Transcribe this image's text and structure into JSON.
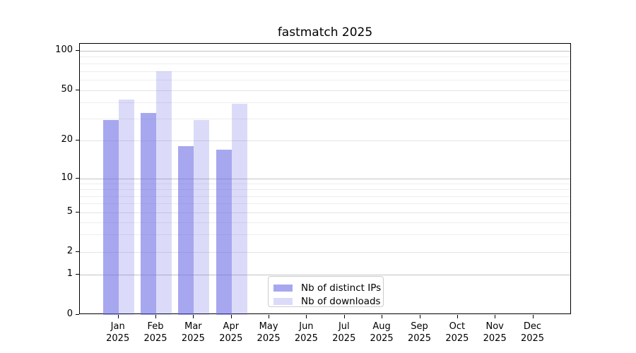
{
  "title": "fastmatch 2025",
  "chart_data": {
    "type": "bar",
    "title": "fastmatch 2025",
    "categories": [
      "Jan",
      "Feb",
      "Mar",
      "Apr",
      "May",
      "Jun",
      "Jul",
      "Aug",
      "Sep",
      "Oct",
      "Nov",
      "Dec"
    ],
    "year_label": "2025",
    "series": [
      {
        "name": "Nb of distinct IPs",
        "color": "rgba(104, 104, 228, 0.58)",
        "values": [
          29,
          33,
          18,
          17,
          0,
          0,
          0,
          0,
          0,
          0,
          0,
          0
        ]
      },
      {
        "name": "Nb of downloads",
        "color": "rgba(104, 104, 228, 0.24)",
        "values": [
          42,
          70,
          29,
          39,
          0,
          0,
          0,
          0,
          0,
          0,
          0,
          0
        ]
      }
    ],
    "xlabel": "",
    "ylabel": "",
    "ylim": [
      0,
      100
    ],
    "y_axis": {
      "ticks": [
        100,
        50,
        20,
        10,
        5,
        2,
        1,
        0
      ],
      "scale": "log-like above 1, linear 0-1",
      "tick_fractions_from_top": [
        0.0253,
        0.1711,
        0.3576,
        0.4966,
        0.6224,
        0.7682,
        0.8523,
        1.0
      ]
    },
    "grid": {
      "horizontal": true,
      "minor_values": [
        90,
        80,
        70,
        60,
        40,
        30,
        9,
        8,
        7,
        6,
        4,
        3
      ],
      "major_values": [
        50,
        20,
        5,
        2
      ],
      "decade_values": [
        100,
        10,
        1
      ]
    },
    "legend": {
      "position": "lower center inside axes"
    }
  },
  "colors": {
    "background": "#ffffff",
    "spine": "#000000",
    "grid_minor": "#ededed",
    "grid_major": "#e3e3e3",
    "grid_decade": "#c3c3c3",
    "bar_distinct_ips": "rgba(104, 104, 228, 0.58)",
    "bar_downloads": "rgba(104, 104, 228, 0.24)"
  }
}
